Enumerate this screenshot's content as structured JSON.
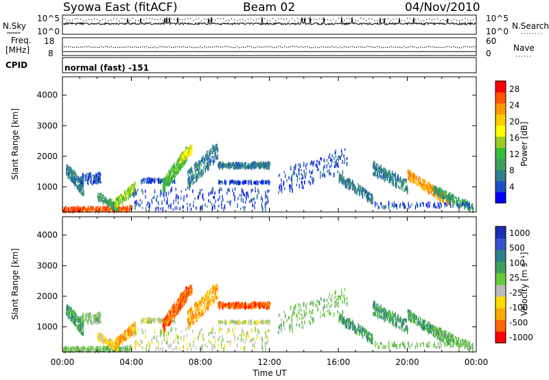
{
  "header": {
    "station": "Syowa East (fitACF)",
    "beam": "Beam 02",
    "date": "04/Nov/2010"
  },
  "chart_data": [
    {
      "type": "line",
      "panel": "noise-search",
      "left_label": "N.Sky",
      "right_label": "N.Search",
      "left_ticks": [
        "10^5",
        "10^0"
      ],
      "right_ticks": [
        "10^5",
        "10^0"
      ],
      "scale": "log",
      "ylim": [
        1,
        100000
      ]
    },
    {
      "type": "line",
      "panel": "freq-nave",
      "left_label_line1": "Freq.",
      "left_label_line2": "[MHz]",
      "right_label": "Nave",
      "left_ticks": [
        18,
        8
      ],
      "right_ticks": [
        60,
        0
      ],
      "freq_ylim": [
        8,
        18
      ],
      "nave_ylim": [
        0,
        60
      ]
    },
    {
      "type": "table",
      "panel": "cpid",
      "label": "CPID",
      "mode_text": "normal (fast) -151"
    },
    {
      "type": "heatmap",
      "panel": "power",
      "ylabel": "Slant Range [km]",
      "yticks": [
        1000,
        2000,
        3000,
        4000
      ],
      "ylim": [
        180,
        4600
      ],
      "xlim": [
        0,
        24
      ],
      "colorbar_label": "Power [dB]",
      "colorbar_ticks": [
        4,
        8,
        12,
        16,
        20,
        24,
        28
      ],
      "colorbar_range": [
        0,
        30
      ],
      "colorscale": [
        "#0000ff",
        "#1f4fc8",
        "#2f7f8c",
        "#3f9f5f",
        "#33bb3a",
        "#99cc22",
        "#ffff00",
        "#ffcc00",
        "#ff9900",
        "#ff5500",
        "#ff0000"
      ]
    },
    {
      "type": "heatmap",
      "panel": "velocity",
      "ylabel": "Slant Range [km]",
      "yticks": [
        1000,
        2000,
        3000,
        4000
      ],
      "ylim": [
        180,
        4600
      ],
      "xlim": [
        0,
        24
      ],
      "xticks": [
        "00:00",
        "04:00",
        "08:00",
        "12:00",
        "16:00",
        "20:00",
        "00:00"
      ],
      "xlabel": "Time UT",
      "colorbar_label": "Velocity [m s⁻¹]",
      "colorbar_ticks": [
        "1000",
        "500",
        "100",
        "25",
        "-25",
        "-100",
        "-500",
        "-1000"
      ],
      "colorscale": [
        "#1a2fb0",
        "#3355cc",
        "#2f7f8c",
        "#3f9f5f",
        "#66cc33",
        "#bbbbbb",
        "#ffdd00",
        "#ffaa00",
        "#ff6600",
        "#ff0000"
      ]
    }
  ]
}
